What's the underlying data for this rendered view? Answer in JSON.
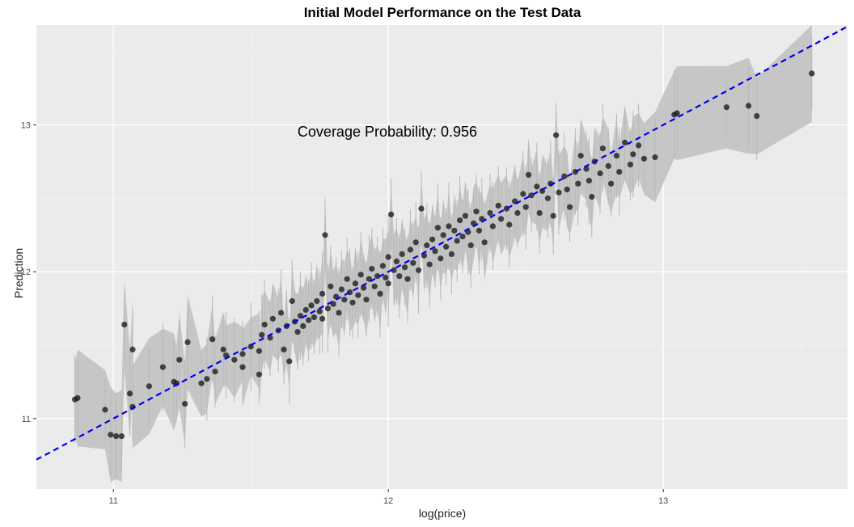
{
  "chart_data": {
    "type": "scatter",
    "title": "Initial Model Performance on the Test Data",
    "xlabel": "log(price)",
    "ylabel": "Prediction",
    "annotation": "Coverage Probability: 0.956",
    "xlim": [
      10.72,
      13.67
    ],
    "ylim": [
      10.52,
      13.68
    ],
    "x_ticks": [
      11,
      12,
      13
    ],
    "y_ticks": [
      11,
      12,
      13
    ],
    "reference_line": {
      "slope": 1,
      "intercept": 0,
      "style": "dashed",
      "color": "#0000ee"
    },
    "interval_band_color": "#c4c4c4",
    "point_color": "#1a1a1a",
    "panel_background": "#ebebeb",
    "grid": true,
    "points": [
      [
        10.86,
        11.13
      ],
      [
        10.87,
        11.14
      ],
      [
        10.97,
        11.06
      ],
      [
        10.99,
        10.89
      ],
      [
        11.01,
        10.88
      ],
      [
        11.03,
        10.88
      ],
      [
        11.04,
        11.64
      ],
      [
        11.06,
        11.17
      ],
      [
        11.07,
        11.47
      ],
      [
        11.07,
        11.08
      ],
      [
        11.13,
        11.22
      ],
      [
        11.18,
        11.35
      ],
      [
        11.22,
        11.25
      ],
      [
        11.23,
        11.24
      ],
      [
        11.24,
        11.4
      ],
      [
        11.26,
        11.1
      ],
      [
        11.27,
        11.52
      ],
      [
        11.32,
        11.24
      ],
      [
        11.34,
        11.27
      ],
      [
        11.36,
        11.54
      ],
      [
        11.37,
        11.32
      ],
      [
        11.4,
        11.47
      ],
      [
        11.41,
        11.43
      ],
      [
        11.44,
        11.4
      ],
      [
        11.47,
        11.44
      ],
      [
        11.47,
        11.35
      ],
      [
        11.5,
        11.49
      ],
      [
        11.53,
        11.46
      ],
      [
        11.53,
        11.3
      ],
      [
        11.54,
        11.57
      ],
      [
        11.55,
        11.64
      ],
      [
        11.57,
        11.55
      ],
      [
        11.58,
        11.68
      ],
      [
        11.6,
        11.6
      ],
      [
        11.61,
        11.72
      ],
      [
        11.62,
        11.47
      ],
      [
        11.63,
        11.63
      ],
      [
        11.64,
        11.39
      ],
      [
        11.65,
        11.8
      ],
      [
        11.66,
        11.66
      ],
      [
        11.67,
        11.59
      ],
      [
        11.68,
        11.7
      ],
      [
        11.69,
        11.63
      ],
      [
        11.7,
        11.74
      ],
      [
        11.71,
        11.67
      ],
      [
        11.72,
        11.77
      ],
      [
        11.73,
        11.69
      ],
      [
        11.74,
        11.8
      ],
      [
        11.75,
        11.73
      ],
      [
        11.76,
        11.85
      ],
      [
        11.76,
        11.68
      ],
      [
        11.77,
        12.25
      ],
      [
        11.78,
        11.75
      ],
      [
        11.79,
        11.9
      ],
      [
        11.8,
        11.78
      ],
      [
        11.81,
        11.83
      ],
      [
        11.82,
        11.72
      ],
      [
        11.83,
        11.88
      ],
      [
        11.84,
        11.81
      ],
      [
        11.85,
        11.95
      ],
      [
        11.86,
        11.86
      ],
      [
        11.87,
        11.79
      ],
      [
        11.88,
        11.92
      ],
      [
        11.89,
        11.84
      ],
      [
        11.9,
        11.98
      ],
      [
        11.91,
        11.89
      ],
      [
        11.92,
        11.81
      ],
      [
        11.93,
        11.95
      ],
      [
        11.94,
        12.02
      ],
      [
        11.95,
        11.9
      ],
      [
        11.96,
        11.97
      ],
      [
        11.97,
        11.85
      ],
      [
        11.98,
        12.04
      ],
      [
        11.99,
        11.96
      ],
      [
        12.0,
        12.1
      ],
      [
        12.0,
        11.92
      ],
      [
        12.01,
        12.39
      ],
      [
        12.02,
        12.01
      ],
      [
        12.03,
        12.07
      ],
      [
        12.04,
        11.97
      ],
      [
        12.05,
        12.12
      ],
      [
        12.06,
        12.03
      ],
      [
        12.07,
        11.95
      ],
      [
        12.08,
        12.15
      ],
      [
        12.09,
        12.06
      ],
      [
        12.1,
        12.2
      ],
      [
        12.11,
        12.01
      ],
      [
        12.12,
        12.43
      ],
      [
        12.13,
        12.11
      ],
      [
        12.14,
        12.18
      ],
      [
        12.15,
        12.05
      ],
      [
        12.16,
        12.22
      ],
      [
        12.17,
        12.14
      ],
      [
        12.18,
        12.3
      ],
      [
        12.19,
        12.09
      ],
      [
        12.2,
        12.25
      ],
      [
        12.21,
        12.17
      ],
      [
        12.22,
        12.31
      ],
      [
        12.23,
        12.12
      ],
      [
        12.24,
        12.28
      ],
      [
        12.25,
        12.21
      ],
      [
        12.26,
        12.35
      ],
      [
        12.27,
        12.24
      ],
      [
        12.28,
        12.38
      ],
      [
        12.29,
        12.27
      ],
      [
        12.3,
        12.18
      ],
      [
        12.31,
        12.33
      ],
      [
        12.32,
        12.41
      ],
      [
        12.33,
        12.28
      ],
      [
        12.34,
        12.36
      ],
      [
        12.35,
        12.2
      ],
      [
        12.37,
        12.4
      ],
      [
        12.38,
        12.31
      ],
      [
        12.4,
        12.45
      ],
      [
        12.41,
        12.36
      ],
      [
        12.43,
        12.43
      ],
      [
        12.44,
        12.32
      ],
      [
        12.46,
        12.48
      ],
      [
        12.47,
        12.4
      ],
      [
        12.49,
        12.53
      ],
      [
        12.5,
        12.44
      ],
      [
        12.51,
        12.66
      ],
      [
        12.52,
        12.52
      ],
      [
        12.54,
        12.58
      ],
      [
        12.55,
        12.4
      ],
      [
        12.56,
        12.55
      ],
      [
        12.58,
        12.5
      ],
      [
        12.59,
        12.6
      ],
      [
        12.6,
        12.38
      ],
      [
        12.61,
        12.93
      ],
      [
        12.62,
        12.54
      ],
      [
        12.64,
        12.65
      ],
      [
        12.65,
        12.56
      ],
      [
        12.66,
        12.44
      ],
      [
        12.68,
        12.68
      ],
      [
        12.69,
        12.6
      ],
      [
        12.7,
        12.79
      ],
      [
        12.72,
        12.7
      ],
      [
        12.73,
        12.62
      ],
      [
        12.74,
        12.51
      ],
      [
        12.75,
        12.75
      ],
      [
        12.77,
        12.67
      ],
      [
        12.78,
        12.84
      ],
      [
        12.8,
        12.72
      ],
      [
        12.81,
        12.6
      ],
      [
        12.83,
        12.79
      ],
      [
        12.84,
        12.68
      ],
      [
        12.86,
        12.88
      ],
      [
        12.88,
        12.73
      ],
      [
        12.89,
        12.8
      ],
      [
        12.91,
        12.86
      ],
      [
        12.93,
        12.77
      ],
      [
        12.97,
        12.78
      ],
      [
        13.04,
        13.07
      ],
      [
        13.05,
        13.08
      ],
      [
        13.23,
        13.12
      ],
      [
        13.31,
        13.13
      ],
      [
        13.34,
        13.06
      ],
      [
        13.54,
        13.35
      ]
    ]
  }
}
